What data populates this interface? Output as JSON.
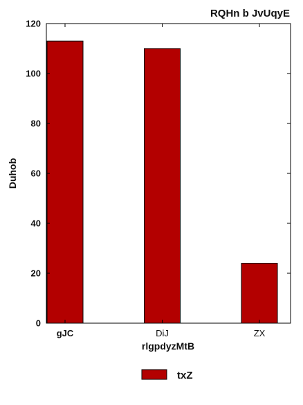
{
  "chart_data": {
    "type": "bar",
    "title": "RQHn  b JvUqyE",
    "xlabel": "rlgpdyzMtB",
    "ylabel": "Duhob",
    "categories": [
      "gJC",
      "DiJ",
      "ZX"
    ],
    "series": [
      {
        "name": "txZ",
        "values": [
          113,
          110,
          24
        ],
        "color": "#b30000"
      }
    ],
    "ylim": [
      0,
      120
    ],
    "yticks": [
      0,
      20,
      40,
      60,
      80,
      100,
      120
    ],
    "grid": false,
    "legend_position": "bottom-center"
  }
}
